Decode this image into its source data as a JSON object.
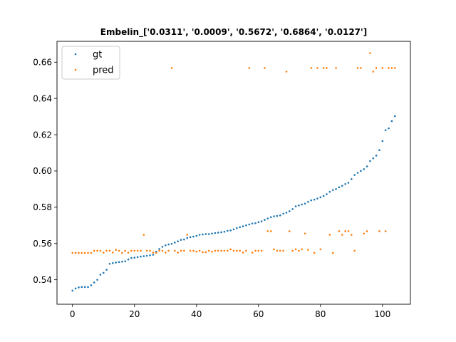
{
  "chart_data": {
    "type": "scatter",
    "title": "Embelin_['0.0311', '0.0009', '0.5672', '0.6864', '0.0127']",
    "xlabel": "",
    "ylabel": "",
    "xlim": [
      -5,
      109
    ],
    "ylim": [
      0.5265,
      0.6715
    ],
    "xticks": [
      0,
      20,
      40,
      60,
      80,
      100
    ],
    "yticks": [
      0.54,
      0.56,
      0.58,
      0.6,
      0.62,
      0.64,
      0.66
    ],
    "ytick_labels": [
      "0.54",
      "0.56",
      "0.58",
      "0.60",
      "0.62",
      "0.64",
      "0.66"
    ],
    "grid": false,
    "legend": {
      "placement": "top-left"
    },
    "series": [
      {
        "name": "gt",
        "color": "#1f77b4",
        "x": [
          0,
          1,
          2,
          3,
          4,
          5,
          6,
          7,
          8,
          9,
          10,
          11,
          12,
          13,
          14,
          15,
          16,
          17,
          18,
          19,
          20,
          21,
          22,
          23,
          24,
          25,
          26,
          27,
          28,
          29,
          30,
          31,
          32,
          33,
          34,
          35,
          36,
          37,
          38,
          39,
          40,
          41,
          42,
          43,
          44,
          45,
          46,
          47,
          48,
          49,
          50,
          51,
          52,
          53,
          54,
          55,
          56,
          57,
          58,
          59,
          60,
          61,
          62,
          63,
          64,
          65,
          66,
          67,
          68,
          69,
          70,
          71,
          72,
          73,
          74,
          75,
          76,
          77,
          78,
          79,
          80,
          81,
          82,
          83,
          84,
          85,
          86,
          87,
          88,
          89,
          90,
          91,
          92,
          93,
          94,
          95,
          96,
          97,
          98,
          99,
          100,
          101,
          102,
          103,
          104
        ],
        "y": [
          0.534,
          0.5352,
          0.5358,
          0.536,
          0.536,
          0.536,
          0.537,
          0.5385,
          0.54,
          0.5428,
          0.5438,
          0.5455,
          0.5488,
          0.5492,
          0.5495,
          0.5498,
          0.55,
          0.5502,
          0.5512,
          0.552,
          0.5522,
          0.5525,
          0.5528,
          0.553,
          0.5532,
          0.5535,
          0.5538,
          0.5555,
          0.557,
          0.5582,
          0.559,
          0.5595,
          0.5598,
          0.5605,
          0.5612,
          0.562,
          0.5622,
          0.563,
          0.5635,
          0.5638,
          0.5642,
          0.5648,
          0.565,
          0.5652,
          0.5652,
          0.5655,
          0.5658,
          0.566,
          0.5662,
          0.5665,
          0.567,
          0.5672,
          0.5678,
          0.5685,
          0.569,
          0.5695,
          0.57,
          0.5705,
          0.571,
          0.5712,
          0.5718,
          0.5722,
          0.573,
          0.5738,
          0.5745,
          0.575,
          0.5752,
          0.5755,
          0.5765,
          0.577,
          0.5778,
          0.579,
          0.5805,
          0.581,
          0.5815,
          0.582,
          0.583,
          0.5838,
          0.5842,
          0.5848,
          0.5855,
          0.5862,
          0.5872,
          0.5885,
          0.5895,
          0.59,
          0.591,
          0.5918,
          0.5928,
          0.5935,
          0.5955,
          0.5978,
          0.599,
          0.6,
          0.601,
          0.6025,
          0.6055,
          0.607,
          0.6085,
          0.6115,
          0.6165,
          0.6225,
          0.6235,
          0.6275,
          0.6302
        ]
      },
      {
        "name": "pred",
        "color": "#ff7f0e",
        "x": [
          0,
          1,
          2,
          3,
          4,
          5,
          6,
          7,
          8,
          9,
          10,
          11,
          12,
          13,
          14,
          15,
          16,
          17,
          18,
          19,
          20,
          21,
          22,
          23,
          24,
          25,
          26,
          27,
          28,
          29,
          30,
          31,
          32,
          33,
          34,
          35,
          36,
          37,
          38,
          39,
          40,
          41,
          42,
          43,
          44,
          45,
          46,
          47,
          48,
          49,
          50,
          51,
          52,
          53,
          54,
          55,
          56,
          57,
          58,
          59,
          60,
          61,
          62,
          63,
          64,
          65,
          66,
          67,
          68,
          69,
          70,
          71,
          72,
          73,
          74,
          75,
          76,
          77,
          78,
          79,
          80,
          81,
          82,
          83,
          84,
          85,
          86,
          87,
          88,
          89,
          90,
          91,
          92,
          93,
          94,
          95,
          96,
          97,
          98,
          99,
          100,
          101,
          102,
          103,
          104
        ],
        "y": [
          0.5548,
          0.5548,
          0.5548,
          0.5548,
          0.5548,
          0.5548,
          0.5548,
          0.556,
          0.556,
          0.556,
          0.555,
          0.556,
          0.556,
          0.555,
          0.5565,
          0.556,
          0.5548,
          0.556,
          0.555,
          0.556,
          0.556,
          0.556,
          0.556,
          0.5648,
          0.556,
          0.556,
          0.555,
          0.5548,
          0.556,
          0.556,
          0.555,
          0.556,
          0.6568,
          0.556,
          0.555,
          0.556,
          0.556,
          0.5648,
          0.556,
          0.556,
          0.5555,
          0.556,
          0.5552,
          0.5552,
          0.556,
          0.5555,
          0.556,
          0.556,
          0.556,
          0.556,
          0.556,
          0.5568,
          0.556,
          0.556,
          0.556,
          0.555,
          0.556,
          0.6568,
          0.555,
          0.556,
          0.556,
          0.556,
          0.6568,
          0.5668,
          0.5668,
          0.5568,
          0.556,
          0.556,
          0.556,
          0.6548,
          0.5668,
          0.556,
          0.5568,
          0.556,
          0.5568,
          0.5655,
          0.5565,
          0.6568,
          0.5548,
          0.6568,
          0.5568,
          0.6568,
          0.6568,
          0.5648,
          0.5548,
          0.6568,
          0.5668,
          0.5648,
          0.5668,
          0.5668,
          0.5648,
          0.556,
          0.6568,
          0.6568,
          0.5655,
          0.5668,
          0.665,
          0.6548,
          0.6568,
          0.5668,
          0.6568,
          0.5668,
          0.6568,
          0.6568,
          0.6568
        ]
      }
    ]
  }
}
